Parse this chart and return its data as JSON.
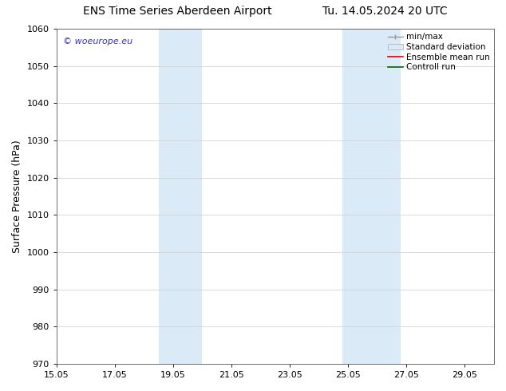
{
  "title": "ENS Time Series Aberdeen Airport",
  "title_right": "Tu. 14.05.2024 20 UTC",
  "ylabel": "Surface Pressure (hPa)",
  "ylim": [
    970,
    1060
  ],
  "yticks": [
    970,
    980,
    990,
    1000,
    1010,
    1020,
    1030,
    1040,
    1050,
    1060
  ],
  "xlim": [
    0,
    15
  ],
  "xtick_labels": [
    "15.05",
    "17.05",
    "19.05",
    "21.05",
    "23.05",
    "25.05",
    "27.05",
    "29.05"
  ],
  "xtick_positions": [
    0,
    2,
    4,
    6,
    8,
    10,
    12,
    14
  ],
  "shaded_bands": [
    {
      "xstart": 3.5,
      "xend": 5.0,
      "color": "#daeaf7"
    },
    {
      "xstart": 9.8,
      "xend": 11.8,
      "color": "#daeaf7"
    }
  ],
  "watermark": "© woeurope.eu",
  "watermark_color": "#3333cc",
  "background_color": "#ffffff",
  "grid_color": "#cccccc",
  "spine_color": "#555555",
  "title_fontsize": 10,
  "tick_fontsize": 8,
  "ylabel_fontsize": 9,
  "legend_fontsize": 7.5
}
